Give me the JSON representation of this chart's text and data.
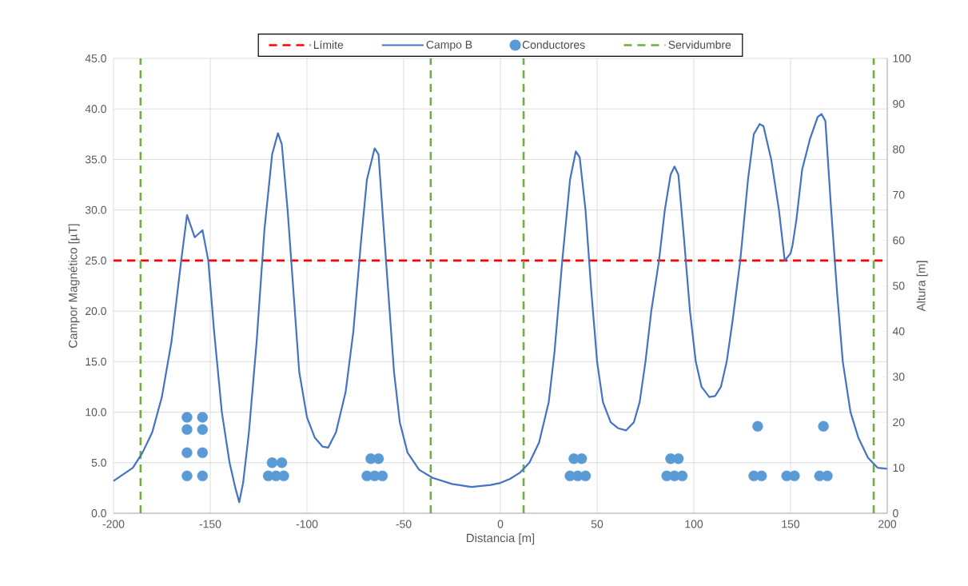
{
  "chart_data": {
    "type": "line",
    "xlabel": "Distancia [m]",
    "ylabel": "Campor Magnético [µT]",
    "y2label": "Altura [m]",
    "xlim": [
      -200,
      200
    ],
    "xticks": [
      -200,
      -150,
      -100,
      -50,
      0,
      50,
      100,
      150,
      200
    ],
    "ylim": [
      0,
      45
    ],
    "yticks": [
      {
        "value": 0,
        "label": "0.0"
      },
      {
        "value": 5,
        "label": "5.0"
      },
      {
        "value": 10,
        "label": "10.0"
      },
      {
        "value": 15,
        "label": "15.0"
      },
      {
        "value": 20,
        "label": "20.0"
      },
      {
        "value": 25,
        "label": "25.0"
      },
      {
        "value": 30,
        "label": "30.0"
      },
      {
        "value": 35,
        "label": "35.0"
      },
      {
        "value": 40,
        "label": "40.0"
      },
      {
        "value": 45,
        "label": "45.0"
      }
    ],
    "y2lim": [
      0,
      100
    ],
    "y2ticks": [
      0,
      10,
      20,
      30,
      40,
      50,
      60,
      70,
      80,
      90,
      100
    ],
    "grid": true,
    "legend": "top",
    "series": [
      {
        "name": "Campo B",
        "type": "line",
        "color": "#4472c4",
        "line_style": "solid",
        "marker": "none",
        "x": [
          -200,
          -190,
          -185,
          -180,
          -175,
          -170,
          -165,
          -162,
          -158,
          -154,
          -151,
          -148,
          -144,
          -140,
          -137,
          -135,
          -133,
          -130,
          -126,
          -122,
          -118,
          -115,
          -113,
          -110,
          -107,
          -104,
          -100,
          -96,
          -92,
          -89,
          -85,
          -80,
          -76,
          -72,
          -69,
          -65,
          -63,
          -61,
          -58,
          -55,
          -52,
          -48,
          -42,
          -35,
          -25,
          -15,
          -5,
          0,
          5,
          10,
          15,
          20,
          25,
          28,
          32,
          36,
          39,
          41,
          44,
          47,
          50,
          53,
          57,
          61,
          65,
          69,
          72,
          75,
          78,
          82,
          85,
          88,
          90,
          92,
          95,
          98,
          101,
          104,
          108,
          111,
          114,
          117,
          120,
          124,
          128,
          131,
          134,
          136,
          140,
          144,
          147,
          150,
          151,
          153,
          156,
          160,
          164,
          166,
          168,
          171,
          174,
          177,
          181,
          185,
          190,
          195,
          200
        ],
        "values": [
          3.2,
          4.5,
          6,
          8,
          11.5,
          17,
          25,
          29.5,
          27.3,
          28,
          25,
          18,
          10,
          5,
          2.5,
          1.1,
          3,
          8,
          17,
          28,
          35.5,
          37.6,
          36.5,
          30,
          22,
          14,
          9.5,
          7.5,
          6.6,
          6.5,
          8,
          12,
          18,
          27,
          33,
          36.1,
          35.5,
          30,
          22,
          14,
          9,
          6,
          4.3,
          3.5,
          2.9,
          2.6,
          2.8,
          3,
          3.4,
          4,
          5,
          7,
          11,
          16,
          25,
          33,
          35.8,
          35.2,
          30,
          22,
          15,
          11,
          9,
          8.4,
          8.2,
          9,
          11,
          15,
          20,
          25,
          30,
          33.5,
          34.3,
          33.5,
          27,
          20,
          15,
          12.5,
          11.5,
          11.6,
          12.5,
          15,
          19,
          25,
          33,
          37.5,
          38.5,
          38.3,
          35,
          30,
          25,
          25.7,
          26.5,
          29,
          34,
          37,
          39.2,
          39.5,
          38.8,
          30,
          22,
          15,
          10,
          7.5,
          5.5,
          4.5,
          4.4
        ]
      },
      {
        "name": "Conductores",
        "type": "scatter",
        "axis": "y2",
        "color": "#5b9bd5",
        "marker": "circle",
        "x": [
          -162,
          -154,
          -162,
          -154,
          -162,
          -154,
          -162,
          -154,
          -120,
          -116,
          -112,
          -118,
          -113,
          -69,
          -65,
          -61,
          -67,
          -63,
          36,
          40,
          44,
          38,
          42,
          86,
          90,
          94,
          88,
          92,
          131,
          135,
          133,
          148,
          152,
          165,
          169,
          167
        ],
        "values": [
          21.1,
          21.1,
          18.4,
          18.4,
          13.3,
          13.3,
          8.2,
          8.2,
          8.2,
          8.2,
          8.2,
          11.1,
          11.1,
          8.2,
          8.2,
          8.2,
          12,
          12,
          8.2,
          8.2,
          8.2,
          12,
          12,
          8.2,
          8.2,
          8.2,
          12,
          12,
          8.2,
          8.2,
          19.1,
          8.2,
          8.2,
          8.2,
          8.2,
          19.1
        ]
      }
    ],
    "ref_lines": [
      {
        "axis": "y",
        "value": 25,
        "label": "Límite",
        "color": "#ff0000",
        "line_style": "dashed"
      },
      {
        "axis": "x",
        "value": -186,
        "label": "Servidumbre",
        "color": "#70ad47",
        "line_style": "dashed"
      },
      {
        "axis": "x",
        "value": -36,
        "color": "#70ad47",
        "line_style": "dashed"
      },
      {
        "axis": "x",
        "value": 12,
        "color": "#70ad47",
        "line_style": "dashed"
      },
      {
        "axis": "x",
        "value": 193,
        "color": "#70ad47",
        "line_style": "dashed"
      }
    ]
  }
}
